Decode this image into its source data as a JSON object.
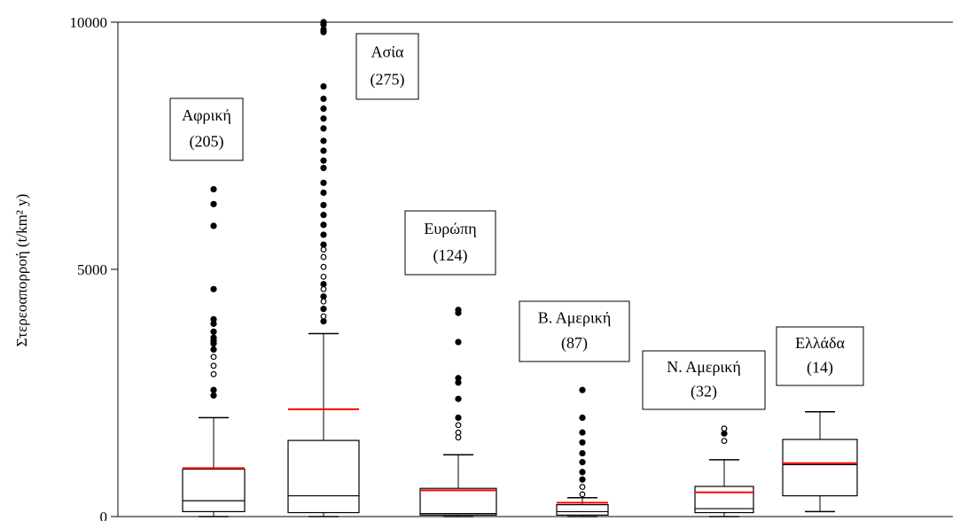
{
  "chart_data": {
    "type": "box",
    "ylabel": "Στερεοαπορροή (t/km² y)",
    "ylim": [
      0,
      10000
    ],
    "y_ticks": [
      "0",
      "5000",
      "10000"
    ],
    "grid": false,
    "mean_color": "#ff0000",
    "groups": [
      {
        "label": "Αφρική",
        "count": "(205)",
        "min": 0,
        "q1": 100,
        "median": 320,
        "q3": 960,
        "max": 2000,
        "mean": 980,
        "outliers_filled": [
          2450,
          2560,
          3380,
          3500,
          3560,
          3620,
          3740,
          3900,
          3990,
          4600,
          5880,
          6320,
          6620
        ],
        "outliers_open": [
          2880,
          3050,
          3230
        ]
      },
      {
        "label": "Ασία",
        "count": "(275)",
        "min": 0,
        "q1": 80,
        "median": 420,
        "q3": 1540,
        "max": 3700,
        "mean": 2170,
        "outliers_filled": [
          3950,
          4200,
          4450,
          4700,
          5500,
          5700,
          5900,
          6100,
          6300,
          6550,
          6750,
          7050,
          7200,
          7400,
          7600,
          7850,
          8050,
          8250,
          8450,
          8700,
          9800,
          9850,
          9950,
          10000
        ],
        "outliers_open": [
          4050,
          4350,
          4600,
          4850,
          5050,
          5250,
          5400
        ]
      },
      {
        "label": "Ευρώπη",
        "count": "(124)",
        "min": 0,
        "q1": 30,
        "median": 60,
        "q3": 570,
        "max": 1250,
        "mean": 530,
        "outliers_filled": [
          2000,
          2380,
          2710,
          2800,
          3530,
          4120,
          4180
        ],
        "outliers_open": [
          1600,
          1700,
          1850
        ]
      },
      {
        "label": "Β. Αμερική",
        "count": "(87)",
        "min": 0,
        "q1": 30,
        "median": 100,
        "q3": 240,
        "max": 380,
        "mean": 280,
        "outliers_filled": [
          750,
          900,
          1100,
          1280,
          1500,
          1700,
          2000,
          2560
        ],
        "outliers_open": [
          450,
          600
        ]
      },
      {
        "label": "Ν. Αμερική",
        "count": "(32)",
        "min": 0,
        "q1": 80,
        "median": 160,
        "q3": 610,
        "max": 1150,
        "mean": 490,
        "outliers_filled": [
          1680
        ],
        "outliers_open": [
          1530,
          1780
        ]
      },
      {
        "label": "Ελλάδα",
        "count": "(14)",
        "min": 100,
        "q1": 420,
        "median": 1050,
        "q3": 1560,
        "max": 2120,
        "mean": 1080,
        "outliers_filled": [],
        "outliers_open": []
      }
    ]
  }
}
